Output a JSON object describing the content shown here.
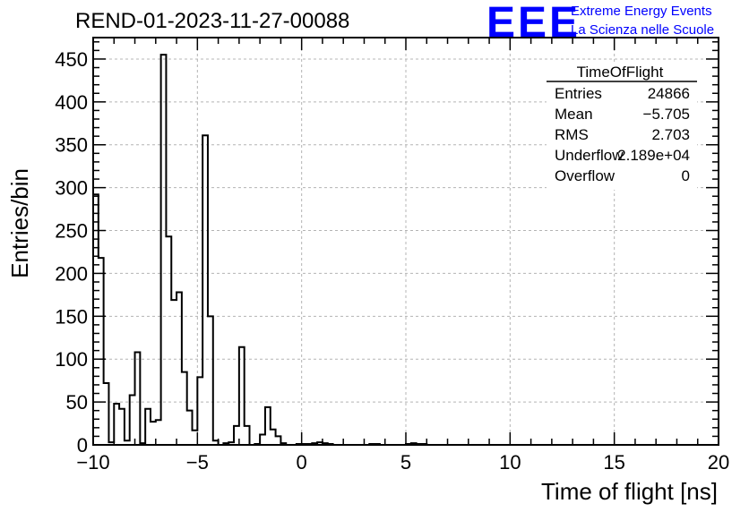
{
  "header": {
    "title": "REND-01-2023-11-27-00088",
    "logo_mark": "EEE",
    "logo_line1": "Extreme Energy Events",
    "logo_line2": "La Scienza nelle Scuole",
    "logo_color": "#0000ff"
  },
  "stats_box": {
    "name": "TimeOfFlight",
    "rows": [
      {
        "label": "Entries",
        "value": "24866"
      },
      {
        "label": "Mean",
        "value": "−5.705"
      },
      {
        "label": "RMS",
        "value": "2.703"
      },
      {
        "label": "Underflow",
        "value": "2.189e+04"
      },
      {
        "label": "Overflow",
        "value": "0"
      }
    ]
  },
  "chart_data": {
    "type": "bar",
    "style": "step-histogram",
    "xlabel": "Time of flight [ns]",
    "ylabel": "Entries/bin",
    "xlim": [
      -10,
      20
    ],
    "ylim": [
      0,
      475
    ],
    "x_ticks": [
      "−10",
      "−5",
      "0",
      "5",
      "10",
      "15",
      "20"
    ],
    "x_tick_values": [
      -10,
      -5,
      0,
      5,
      10,
      15,
      20
    ],
    "y_ticks": [
      "0",
      "50",
      "100",
      "150",
      "200",
      "250",
      "300",
      "350",
      "400",
      "450"
    ],
    "y_tick_values": [
      0,
      50,
      100,
      150,
      200,
      250,
      300,
      350,
      400,
      450
    ],
    "grid": true,
    "bin_width": 0.25,
    "x_start": -10,
    "values": [
      292,
      218,
      72,
      3,
      48,
      42,
      5,
      58,
      108,
      2,
      42,
      27,
      29,
      455,
      243,
      169,
      178,
      85,
      40,
      17,
      79,
      361,
      150,
      5,
      0,
      2,
      3,
      22,
      114,
      22,
      0,
      1,
      12,
      44,
      18,
      10,
      2,
      0,
      0,
      1,
      1,
      1,
      2,
      3,
      2,
      1,
      0,
      0,
      0,
      0,
      0,
      0,
      0,
      1,
      1,
      0,
      0,
      0,
      0,
      0,
      1,
      2,
      1,
      1,
      0,
      0,
      0,
      0,
      0,
      0,
      0,
      0,
      0,
      0,
      0,
      0,
      0,
      0,
      0,
      0,
      0,
      0,
      0,
      0,
      0,
      0,
      0,
      0,
      0,
      0,
      0,
      0,
      0,
      0,
      0,
      0,
      0,
      0,
      0,
      0,
      0,
      0,
      0,
      0,
      0,
      0,
      0,
      0,
      0,
      0,
      0,
      0,
      0,
      0,
      0,
      0,
      0,
      0,
      0,
      0
    ]
  }
}
